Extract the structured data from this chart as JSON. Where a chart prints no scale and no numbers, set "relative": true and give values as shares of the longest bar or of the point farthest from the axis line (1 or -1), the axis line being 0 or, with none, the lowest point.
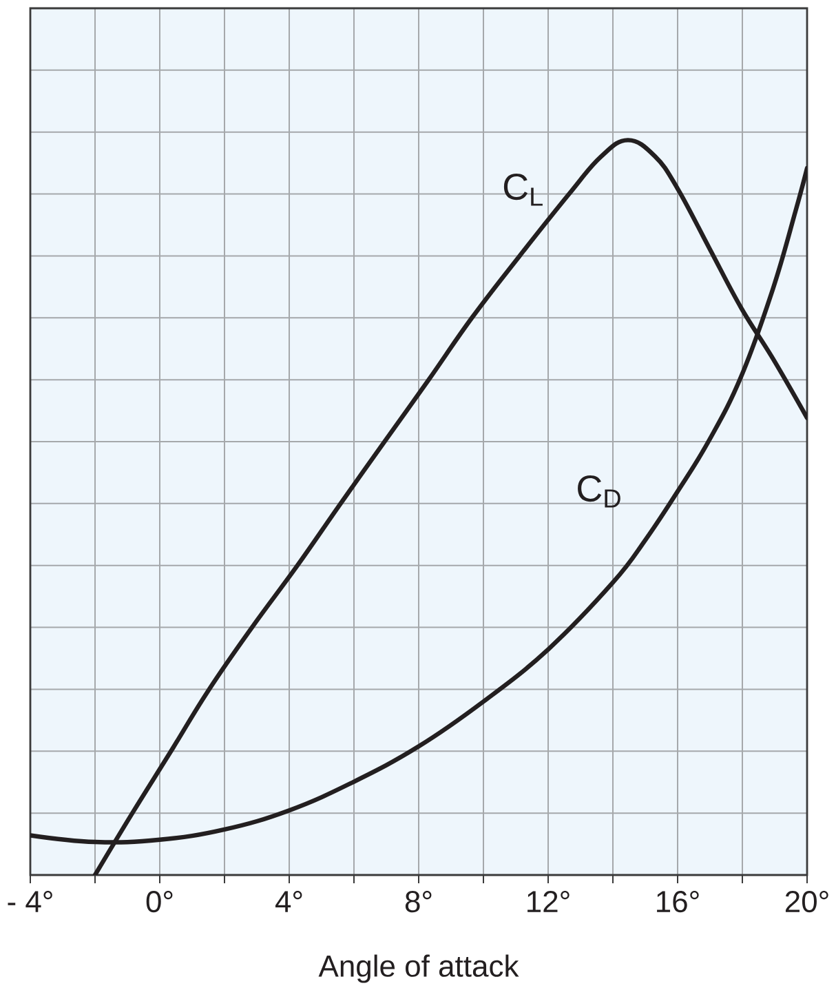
{
  "chart_data": {
    "type": "line",
    "xlabel": "Angle of attack",
    "relative": true,
    "grid": true,
    "marker": "none",
    "line_style": "solid",
    "tick_labels": "x",
    "xlim": [
      -4,
      20
    ],
    "xticks": [
      {
        "value": -4,
        "label": "- 4°"
      },
      {
        "value": -2,
        "label": null
      },
      {
        "value": 0,
        "label": "0°"
      },
      {
        "value": 2,
        "label": null
      },
      {
        "value": 4,
        "label": "4°"
      },
      {
        "value": 6,
        "label": null
      },
      {
        "value": 8,
        "label": "8°"
      },
      {
        "value": 10,
        "label": null
      },
      {
        "value": 12,
        "label": "12°"
      },
      {
        "value": 14,
        "label": null
      },
      {
        "value": 16,
        "label": "16°"
      },
      {
        "value": 18,
        "label": null
      },
      {
        "value": 20,
        "label": "20°"
      }
    ],
    "series": [
      {
        "name": "C$_{L}$",
        "color": "#231f20",
        "x": [
          -2,
          -0.85,
          0.34,
          1.53,
          2.85,
          4.25,
          5.58,
          6.95,
          8.31,
          9.64,
          11.11,
          12.65,
          13.62,
          14.46,
          15.3,
          16.0,
          16.98,
          17.96,
          18.94,
          20
        ],
        "values": [
          0,
          0.084,
          0.168,
          0.253,
          0.337,
          0.421,
          0.505,
          0.59,
          0.674,
          0.758,
          0.842,
          0.927,
          0.977,
          1,
          0.978,
          0.934,
          0.853,
          0.772,
          0.703,
          0.622
        ]
      },
      {
        "name": "C$_{D}$",
        "color": "#231f20",
        "x": [
          -4,
          -2,
          0,
          2,
          4,
          6,
          8,
          10,
          12,
          14,
          15.02,
          16,
          16.98,
          17.96,
          18.94,
          19.64,
          20
        ],
        "values": [
          0.054,
          0.045,
          0.048,
          0.062,
          0.088,
          0.127,
          0.175,
          0.236,
          0.307,
          0.398,
          0.457,
          0.522,
          0.592,
          0.678,
          0.797,
          0.903,
          0.962
        ]
      }
    ]
  }
}
